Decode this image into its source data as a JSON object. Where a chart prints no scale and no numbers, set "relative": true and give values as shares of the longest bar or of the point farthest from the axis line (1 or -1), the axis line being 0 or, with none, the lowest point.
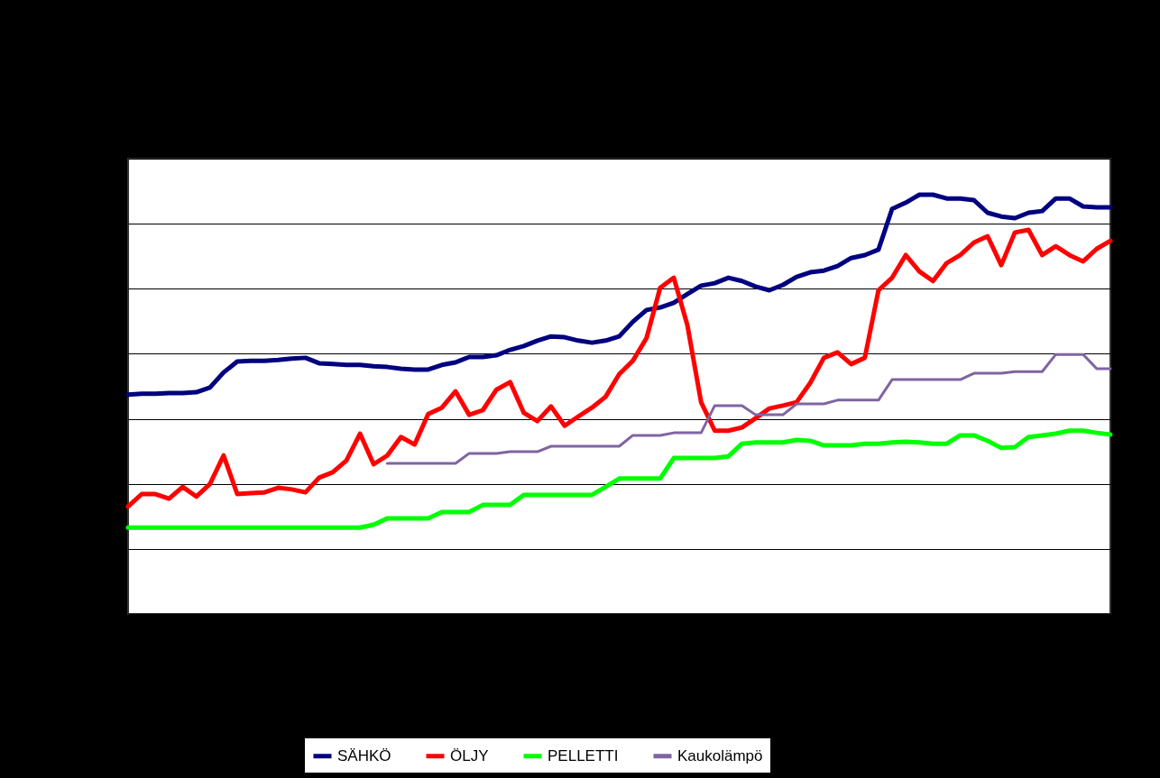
{
  "chart_data": {
    "type": "line",
    "relative": true,
    "grid": "y",
    "legend": "bottom",
    "categories": [
      null,
      null,
      null,
      null,
      null,
      null,
      null,
      null,
      null,
      null,
      null,
      null,
      null,
      null,
      null,
      null,
      null,
      null,
      null,
      null,
      null,
      null,
      null,
      null,
      null,
      null,
      null,
      null,
      null,
      null,
      null,
      null,
      null,
      null,
      null,
      null,
      null,
      null,
      null,
      null,
      null,
      null,
      null,
      null,
      null,
      null,
      null,
      null,
      null,
      null,
      null,
      null,
      null,
      null,
      null,
      null,
      null,
      null,
      null,
      null,
      null,
      null,
      null,
      null,
      null,
      null,
      null,
      null,
      null,
      null,
      null,
      null,
      null
    ],
    "series": [
      {
        "name": "SÄHKÖ",
        "color": "#000080",
        "values": [
          0.523,
          0.525,
          0.525,
          0.527,
          0.527,
          0.529,
          0.54,
          0.576,
          0.602,
          0.604,
          0.604,
          0.606,
          0.609,
          0.611,
          0.598,
          0.596,
          0.594,
          0.594,
          0.591,
          0.589,
          0.585,
          0.583,
          0.583,
          0.594,
          0.6,
          0.613,
          0.613,
          0.617,
          0.63,
          0.639,
          0.652,
          0.662,
          0.66,
          0.652,
          0.647,
          0.652,
          0.662,
          0.697,
          0.725,
          0.731,
          0.742,
          0.763,
          0.783,
          0.789,
          0.802,
          0.794,
          0.781,
          0.772,
          0.785,
          0.804,
          0.815,
          0.819,
          0.83,
          0.849,
          0.856,
          0.869,
          0.966,
          0.981,
          1,
          1,
          0.991,
          0.991,
          0.987,
          0.957,
          0.948,
          0.944,
          0.957,
          0.961,
          0.991,
          0.991,
          0.972,
          0.97,
          0.97
        ]
      },
      {
        "name": "ÖLJY",
        "color": "#ff0000",
        "values": [
          0.256,
          0.286,
          0.286,
          0.275,
          0.303,
          0.28,
          0.31,
          0.378,
          0.286,
          0.288,
          0.29,
          0.301,
          0.297,
          0.29,
          0.325,
          0.338,
          0.366,
          0.43,
          0.357,
          0.378,
          0.422,
          0.404,
          0.477,
          0.492,
          0.531,
          0.475,
          0.486,
          0.535,
          0.553,
          0.48,
          0.46,
          0.495,
          0.449,
          0.471,
          0.492,
          0.518,
          0.572,
          0.604,
          0.658,
          0.778,
          0.802,
          0.688,
          0.505,
          0.437,
          0.437,
          0.445,
          0.467,
          0.49,
          0.497,
          0.505,
          0.551,
          0.611,
          0.624,
          0.596,
          0.611,
          0.772,
          0.802,
          0.856,
          0.817,
          0.794,
          0.837,
          0.856,
          0.886,
          0.901,
          0.832,
          0.91,
          0.916,
          0.856,
          0.877,
          0.856,
          0.841,
          0.871,
          0.89
        ]
      },
      {
        "name": "PELLETTI",
        "color": "#00ff00",
        "values": [
          0.206,
          0.206,
          0.206,
          0.206,
          0.206,
          0.206,
          0.206,
          0.206,
          0.206,
          0.206,
          0.206,
          0.206,
          0.206,
          0.206,
          0.206,
          0.206,
          0.206,
          0.206,
          0.213,
          0.228,
          0.228,
          0.228,
          0.228,
          0.243,
          0.243,
          0.243,
          0.26,
          0.26,
          0.26,
          0.284,
          0.284,
          0.284,
          0.284,
          0.284,
          0.284,
          0.303,
          0.323,
          0.323,
          0.323,
          0.323,
          0.372,
          0.372,
          0.372,
          0.372,
          0.376,
          0.406,
          0.409,
          0.409,
          0.409,
          0.415,
          0.413,
          0.402,
          0.402,
          0.402,
          0.406,
          0.406,
          0.409,
          0.411,
          0.409,
          0.406,
          0.406,
          0.426,
          0.426,
          0.413,
          0.396,
          0.398,
          0.422,
          0.426,
          0.43,
          0.437,
          0.437,
          0.432,
          0.428
        ]
      },
      {
        "name": "Kaukolämpö",
        "color": "#8064a2",
        "values": [
          null,
          null,
          null,
          null,
          null,
          null,
          null,
          null,
          null,
          null,
          null,
          null,
          null,
          null,
          null,
          null,
          null,
          null,
          null,
          0.359,
          0.359,
          0.359,
          0.359,
          0.359,
          0.359,
          0.383,
          0.383,
          0.383,
          0.387,
          0.387,
          0.387,
          0.4,
          0.4,
          0.4,
          0.4,
          0.4,
          0.4,
          0.426,
          0.426,
          0.426,
          0.432,
          0.432,
          0.432,
          0.497,
          0.497,
          0.497,
          0.475,
          0.475,
          0.475,
          0.501,
          0.501,
          0.501,
          0.51,
          0.51,
          0.51,
          0.51,
          0.559,
          0.559,
          0.559,
          0.559,
          0.559,
          0.559,
          0.574,
          0.574,
          0.574,
          0.578,
          0.578,
          0.578,
          0.619,
          0.619,
          0.619,
          0.585,
          0.585
        ]
      }
    ]
  }
}
